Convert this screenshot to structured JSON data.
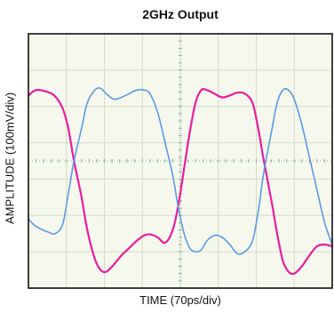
{
  "chart_data": {
    "type": "line",
    "title": "2GHz Output",
    "xlabel": "TIME (70ps/div)",
    "ylabel": "AMPLITUDE (100mV/div)",
    "grid": true,
    "x_divisions": 8,
    "y_divisions": 7,
    "xlim": [
      0,
      8
    ],
    "ylim": [
      -3.5,
      3.5
    ],
    "colors": {
      "background": "#f6f8ee",
      "grid": "#d3ddc4",
      "axis_ticks": "#8fae9a",
      "frame": "#000000"
    },
    "series": [
      {
        "color": "#ec1c9c",
        "x": [
          0,
          0.2,
          0.5,
          0.7,
          0.9,
          1.05,
          1.2,
          1.4,
          1.55,
          1.75,
          1.9,
          2.05,
          2.25,
          2.45,
          2.65,
          2.85,
          3.05,
          3.2,
          3.4,
          3.6,
          3.8,
          3.95,
          4.1,
          4.25,
          4.4,
          4.55,
          4.7,
          4.9,
          5.1,
          5.3,
          5.5,
          5.7,
          5.9,
          6.05,
          6.2,
          6.4,
          6.55,
          6.7,
          6.85,
          7.0,
          7.2,
          7.4,
          7.6,
          7.8,
          8.0
        ],
        "y": [
          1.8,
          1.95,
          1.9,
          1.78,
          1.45,
          0.9,
          0.0,
          -1.0,
          -1.9,
          -2.7,
          -3.0,
          -3.05,
          -2.85,
          -2.6,
          -2.4,
          -2.2,
          -2.05,
          -2.02,
          -2.1,
          -2.25,
          -1.9,
          -1.2,
          -0.2,
          0.8,
          1.6,
          1.95,
          1.95,
          1.85,
          1.75,
          1.8,
          1.88,
          1.85,
          1.6,
          0.9,
          0.0,
          -1.1,
          -2.0,
          -2.75,
          -3.05,
          -3.1,
          -2.9,
          -2.6,
          -2.35,
          -2.3,
          -2.35
        ]
      },
      {
        "color": "#5a9be0",
        "x": [
          0,
          0.2,
          0.5,
          0.7,
          0.9,
          1.05,
          1.2,
          1.4,
          1.55,
          1.75,
          1.9,
          2.05,
          2.25,
          2.45,
          2.65,
          2.85,
          3.05,
          3.2,
          3.4,
          3.6,
          3.8,
          3.95,
          4.1,
          4.25,
          4.4,
          4.55,
          4.7,
          4.9,
          5.1,
          5.3,
          5.5,
          5.7,
          5.9,
          6.05,
          6.2,
          6.4,
          6.55,
          6.7,
          6.85,
          7.0,
          7.2,
          7.4,
          7.6,
          7.8,
          8.0
        ],
        "y": [
          -1.6,
          -1.8,
          -1.95,
          -2.0,
          -1.75,
          -0.9,
          0.0,
          0.9,
          1.6,
          1.95,
          2.0,
          1.85,
          1.7,
          1.75,
          1.85,
          1.95,
          1.95,
          1.85,
          1.35,
          0.5,
          -0.4,
          -1.3,
          -2.0,
          -2.4,
          -2.5,
          -2.45,
          -2.2,
          -2.05,
          -2.1,
          -2.3,
          -2.55,
          -2.5,
          -2.2,
          -1.4,
          -0.3,
          0.8,
          1.6,
          1.95,
          1.95,
          1.7,
          1.0,
          0.1,
          -0.8,
          -1.7,
          -2.3
        ]
      }
    ]
  }
}
